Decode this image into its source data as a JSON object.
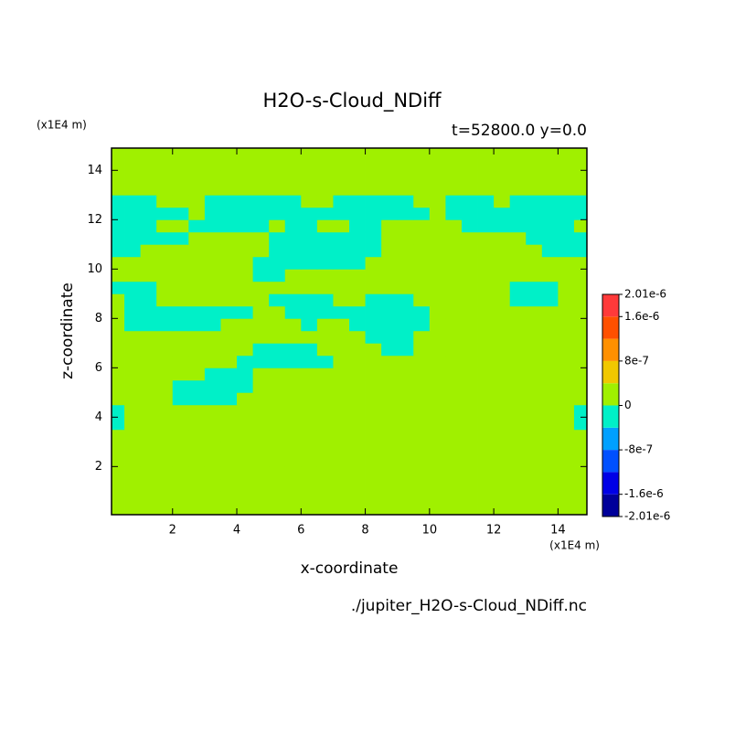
{
  "chart_data": {
    "type": "contour",
    "title": "H2O-s-Cloud_NDiff",
    "subtitle": "t=52800.0 y=0.0",
    "x_label": "x-coordinate",
    "y_label": "z-coordinate",
    "x_unit": "(x1E4 m)",
    "y_unit": "(x1E4 m)",
    "footer": "./jupiter_H2O-s-Cloud_NDiff.nc",
    "xlim": [
      0.1,
      14.9
    ],
    "ylim": [
      0.05,
      14.9
    ],
    "xticks": [
      2,
      4,
      6,
      8,
      10,
      12,
      14
    ],
    "yticks": [
      2,
      4,
      6,
      8,
      10,
      12,
      14
    ],
    "levels": [
      -2.01e-06,
      -1.6e-06,
      -1.2e-06,
      -8e-07,
      -4e-07,
      0,
      4e-07,
      8e-07,
      1.2e-06,
      1.6e-06,
      2.01e-06
    ],
    "colors": [
      "#00009a",
      "#0000e6",
      "#0050ff",
      "#00a0ff",
      "#00f0c8",
      "#a0f000",
      "#f0c800",
      "#ff9000",
      "#ff5000",
      "#ff3a3a"
    ],
    "colorbar_ticks": [
      {
        "value": -2.01e-06,
        "label": "-2.01e-6"
      },
      {
        "value": -1.6e-06,
        "label": "-1.6e-6"
      },
      {
        "value": -8e-07,
        "label": "-8e-7"
      },
      0,
      {
        "value": 8e-07,
        "label": "8e-7"
      },
      {
        "value": 1.6e-06,
        "label": "1.6e-6"
      },
      {
        "value": 2.01e-06,
        "label": "2.01e-6"
      }
    ],
    "x": [
      0.25,
      0.75,
      1.25,
      1.75,
      2.25,
      2.75,
      3.25,
      3.75,
      4.25,
      4.75,
      5.25,
      5.75,
      6.25,
      6.75,
      7.25,
      7.75,
      8.25,
      8.75,
      9.25,
      9.75,
      10.25,
      10.75,
      11.25,
      11.75,
      12.25,
      12.75,
      13.25,
      13.75,
      14.25,
      14.75
    ],
    "z": [
      0.25,
      0.75,
      1.25,
      1.75,
      2.25,
      2.75,
      3.25,
      3.75,
      4.25,
      4.75,
      5.25,
      5.75,
      6.25,
      6.75,
      7.25,
      7.75,
      8.25,
      8.75,
      9.25,
      9.75,
      10.25,
      10.75,
      11.25,
      11.75,
      12.25,
      12.75,
      13.25,
      13.75,
      14.25,
      14.75
    ],
    "values": [
      [
        0,
        0,
        0,
        0,
        0,
        0,
        0,
        0,
        0,
        0,
        0,
        0,
        0,
        0,
        0,
        0,
        0,
        0,
        0,
        0,
        0,
        0,
        0,
        0,
        0,
        0,
        0,
        0,
        0,
        0
      ],
      [
        0,
        0,
        0,
        0,
        0,
        0,
        0,
        0,
        0,
        0,
        0,
        0,
        0,
        0,
        0,
        0,
        0,
        0,
        0,
        0,
        0,
        0,
        0,
        0,
        0,
        0,
        0,
        0,
        0,
        0
      ],
      [
        0,
        0,
        0,
        0,
        0,
        0,
        0,
        0,
        0,
        0,
        0,
        0,
        0,
        0,
        0,
        0,
        0,
        0,
        0,
        0,
        0,
        0,
        0,
        0,
        0,
        0,
        0,
        0,
        0,
        0
      ],
      [
        0,
        0,
        0,
        0,
        0,
        0,
        0,
        0,
        0,
        0,
        0,
        0,
        0,
        0,
        0,
        0,
        0,
        0,
        0,
        0,
        0,
        0,
        0,
        0,
        0,
        0,
        0,
        0,
        0,
        0
      ],
      [
        0,
        0,
        0,
        0,
        0,
        0,
        0,
        0,
        0,
        0,
        0,
        0,
        0,
        0,
        0,
        0,
        0,
        0,
        0,
        0,
        0,
        0,
        0,
        0,
        0,
        0,
        0,
        0,
        0,
        0
      ],
      [
        0,
        0,
        0,
        0,
        0,
        0,
        0,
        0,
        0,
        0,
        0,
        0,
        0,
        0,
        0,
        0,
        0,
        0,
        0,
        0,
        0,
        0,
        0,
        0,
        0,
        0,
        0,
        0,
        0,
        0
      ],
      [
        0,
        0,
        0,
        0,
        0,
        0,
        0,
        0,
        0,
        0,
        0,
        0,
        0,
        0,
        0,
        0,
        0,
        0,
        0,
        0,
        0,
        0,
        0,
        0,
        0,
        0,
        0,
        0,
        0,
        0
      ],
      [
        -4e-07,
        0,
        0,
        0,
        0,
        0,
        0,
        0,
        0,
        0,
        0,
        0,
        0,
        0,
        0,
        0,
        0,
        0,
        0,
        0,
        0,
        0,
        0,
        0,
        0,
        0,
        0,
        0,
        0,
        -4e-07
      ],
      [
        -4e-07,
        0,
        0,
        0,
        0,
        0,
        0,
        0,
        0,
        0,
        0,
        0,
        0,
        0,
        0,
        0,
        0,
        0,
        0,
        0,
        0,
        0,
        0,
        0,
        0,
        0,
        0,
        0,
        0,
        -4e-07
      ],
      [
        0,
        0,
        0,
        0,
        -4e-07,
        -4e-07,
        -4e-07,
        -4e-07,
        0,
        0,
        0,
        0,
        0,
        0,
        0,
        0,
        0,
        0,
        0,
        0,
        0,
        0,
        0,
        0,
        0,
        0,
        0,
        0,
        0,
        0
      ],
      [
        0,
        0,
        0,
        0,
        -4e-07,
        -4e-07,
        -4e-07,
        -4e-07,
        -4e-07,
        0,
        0,
        0,
        0,
        0,
        0,
        0,
        0,
        0,
        0,
        0,
        0,
        0,
        0,
        0,
        0,
        0,
        0,
        0,
        0,
        0
      ],
      [
        0,
        0,
        0,
        0,
        0,
        0,
        -4e-07,
        -4e-07,
        -4e-07,
        0,
        0,
        0,
        0,
        0,
        0,
        0,
        0,
        0,
        0,
        0,
        0,
        0,
        0,
        0,
        0,
        0,
        0,
        0,
        0,
        0
      ],
      [
        0,
        0,
        0,
        0,
        0,
        0,
        0,
        0,
        -4e-07,
        -4e-07,
        -4e-07,
        -4e-07,
        -4e-07,
        -4e-07,
        0,
        0,
        0,
        0,
        0,
        0,
        0,
        0,
        0,
        0,
        0,
        0,
        0,
        0,
        0,
        0
      ],
      [
        0,
        0,
        0,
        0,
        0,
        0,
        0,
        0,
        0,
        -4e-07,
        -4e-07,
        -4e-07,
        -4e-07,
        0,
        0,
        0,
        0,
        -4e-07,
        -4e-07,
        0,
        0,
        0,
        0,
        0,
        0,
        0,
        0,
        0,
        0,
        0
      ],
      [
        0,
        0,
        0,
        0,
        0,
        0,
        0,
        0,
        0,
        0,
        0,
        0,
        0,
        0,
        0,
        0,
        -4e-07,
        -4e-07,
        -4e-07,
        0,
        0,
        0,
        0,
        0,
        0,
        0,
        0,
        0,
        0,
        0
      ],
      [
        0,
        -4e-07,
        -4e-07,
        -4e-07,
        -4e-07,
        -4e-07,
        -4e-07,
        0,
        0,
        0,
        0,
        0,
        -4e-07,
        0,
        0,
        -4e-07,
        -4e-07,
        -4e-07,
        -4e-07,
        -4e-07,
        0,
        0,
        0,
        0,
        0,
        0,
        0,
        0,
        0,
        0
      ],
      [
        0,
        -4e-07,
        -4e-07,
        -4e-07,
        -4e-07,
        -4e-07,
        -4e-07,
        -4e-07,
        -4e-07,
        0,
        0,
        -4e-07,
        -4e-07,
        -4e-07,
        -4e-07,
        -4e-07,
        -4e-07,
        -4e-07,
        -4e-07,
        -4e-07,
        0,
        0,
        0,
        0,
        0,
        0,
        0,
        0,
        0,
        0
      ],
      [
        0,
        -4e-07,
        -4e-07,
        0,
        0,
        0,
        0,
        0,
        0,
        0,
        -4e-07,
        -4e-07,
        -4e-07,
        -4e-07,
        0,
        0,
        -4e-07,
        -4e-07,
        -4e-07,
        0,
        0,
        0,
        0,
        0,
        0,
        -4e-07,
        -4e-07,
        -4e-07,
        0,
        0
      ],
      [
        -4e-07,
        -4e-07,
        -4e-07,
        0,
        0,
        0,
        0,
        0,
        0,
        0,
        0,
        0,
        0,
        0,
        0,
        0,
        0,
        0,
        0,
        0,
        0,
        0,
        0,
        0,
        0,
        -4e-07,
        -4e-07,
        -4e-07,
        0,
        0
      ],
      [
        0,
        0,
        0,
        0,
        0,
        0,
        0,
        0,
        0,
        -4e-07,
        -4e-07,
        0,
        0,
        0,
        0,
        0,
        0,
        0,
        0,
        0,
        0,
        0,
        0,
        0,
        0,
        0,
        0,
        0,
        0,
        0
      ],
      [
        0,
        0,
        0,
        0,
        0,
        0,
        0,
        0,
        0,
        -4e-07,
        -4e-07,
        -4e-07,
        -4e-07,
        -4e-07,
        -4e-07,
        -4e-07,
        0,
        0,
        0,
        0,
        0,
        0,
        0,
        0,
        0,
        0,
        0,
        0,
        0,
        0
      ],
      [
        -4e-07,
        -4e-07,
        0,
        0,
        0,
        0,
        0,
        0,
        0,
        0,
        -4e-07,
        -4e-07,
        -4e-07,
        -4e-07,
        -4e-07,
        -4e-07,
        -4e-07,
        0,
        0,
        0,
        0,
        0,
        0,
        0,
        0,
        0,
        0,
        -4e-07,
        -4e-07,
        -4e-07
      ],
      [
        -4e-07,
        -4e-07,
        -4e-07,
        -4e-07,
        -4e-07,
        0,
        0,
        0,
        0,
        0,
        -4e-07,
        -4e-07,
        -4e-07,
        -4e-07,
        -4e-07,
        -4e-07,
        -4e-07,
        0,
        0,
        0,
        0,
        0,
        0,
        0,
        0,
        0,
        -4e-07,
        -4e-07,
        -4e-07,
        -4e-07
      ],
      [
        -4e-07,
        -4e-07,
        -4e-07,
        0,
        0,
        -4e-07,
        -4e-07,
        -4e-07,
        -4e-07,
        -4e-07,
        0,
        -4e-07,
        -4e-07,
        0,
        0,
        -4e-07,
        -4e-07,
        0,
        0,
        0,
        0,
        0,
        -4e-07,
        -4e-07,
        -4e-07,
        -4e-07,
        -4e-07,
        -4e-07,
        -4e-07,
        0
      ],
      [
        -4e-07,
        -4e-07,
        -4e-07,
        -4e-07,
        -4e-07,
        0,
        -4e-07,
        -4e-07,
        -4e-07,
        -4e-07,
        -4e-07,
        -4e-07,
        -4e-07,
        -4e-07,
        -4e-07,
        -4e-07,
        -4e-07,
        -4e-07,
        -4e-07,
        -4e-07,
        0,
        -4e-07,
        -4e-07,
        -4e-07,
        -4e-07,
        -4e-07,
        -4e-07,
        -4e-07,
        -4e-07,
        -4e-07
      ],
      [
        -4e-07,
        -4e-07,
        -4e-07,
        0,
        0,
        0,
        -4e-07,
        -4e-07,
        -4e-07,
        -4e-07,
        -4e-07,
        -4e-07,
        0,
        0,
        -4e-07,
        -4e-07,
        -4e-07,
        -4e-07,
        -4e-07,
        0,
        0,
        -4e-07,
        -4e-07,
        -4e-07,
        0,
        -4e-07,
        -4e-07,
        -4e-07,
        -4e-07,
        -4e-07
      ],
      [
        0,
        0,
        0,
        0,
        0,
        0,
        0,
        0,
        0,
        0,
        0,
        0,
        0,
        0,
        0,
        0,
        0,
        0,
        0,
        0,
        0,
        0,
        0,
        0,
        0,
        0,
        0,
        0,
        0,
        0
      ],
      [
        0,
        0,
        0,
        0,
        0,
        0,
        0,
        0,
        0,
        0,
        0,
        0,
        0,
        0,
        0,
        0,
        0,
        0,
        0,
        0,
        0,
        0,
        0,
        0,
        0,
        0,
        0,
        0,
        0,
        0
      ],
      [
        0,
        0,
        0,
        0,
        0,
        0,
        0,
        0,
        0,
        0,
        0,
        0,
        0,
        0,
        0,
        0,
        0,
        0,
        0,
        0,
        0,
        0,
        0,
        0,
        0,
        0,
        0,
        0,
        0,
        0
      ],
      [
        0,
        0,
        0,
        0,
        0,
        0,
        0,
        0,
        0,
        0,
        0,
        0,
        0,
        0,
        0,
        0,
        0,
        0,
        0,
        0,
        0,
        0,
        0,
        0,
        0,
        0,
        0,
        0,
        0,
        0
      ]
    ]
  }
}
